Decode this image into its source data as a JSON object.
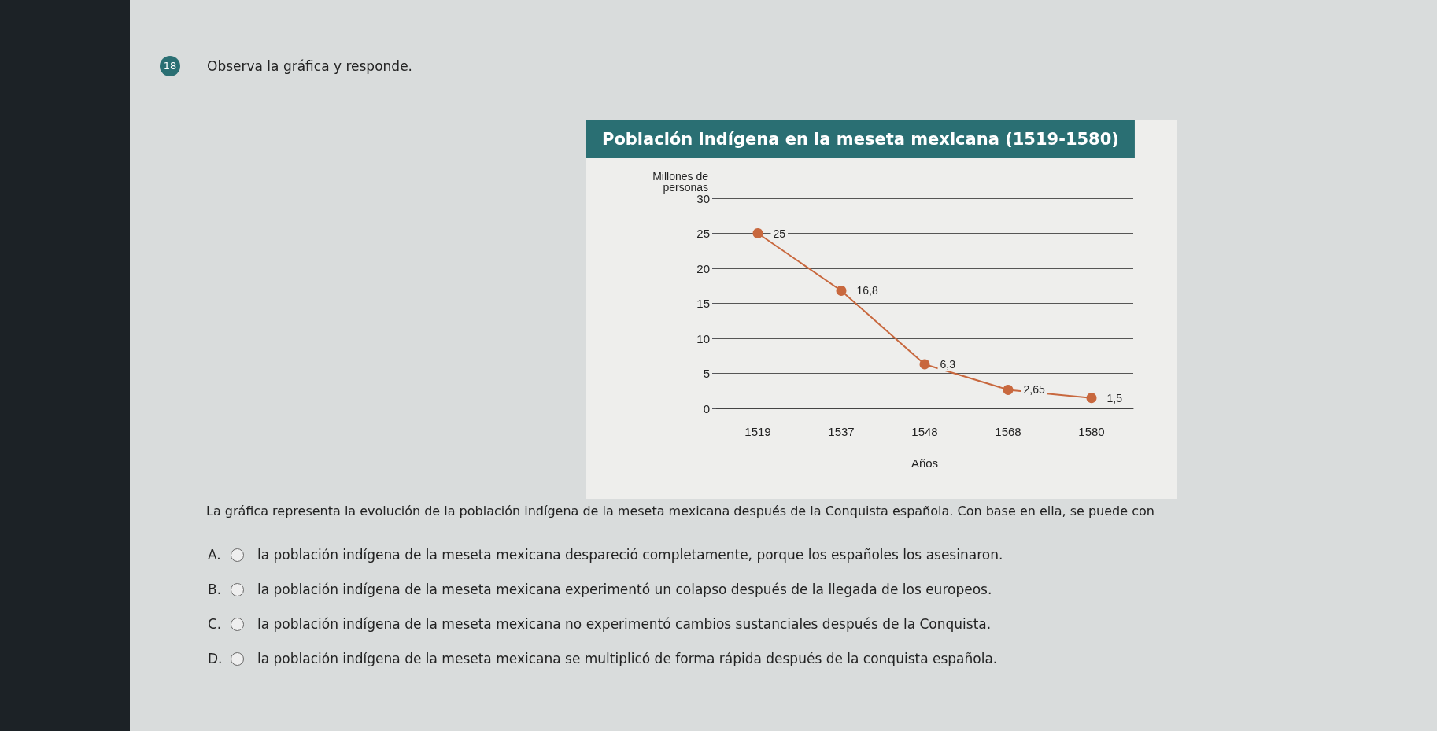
{
  "chart_data": {
    "type": "line",
    "title": "Población indígena en la meseta mexicana (1519-1580)",
    "xlabel": "Años",
    "ylabel": "Millones de\npersonas",
    "categories": [
      "1519",
      "1537",
      "1548",
      "1568",
      "1580"
    ],
    "series": [
      {
        "color": "#c8683e",
        "values": [
          25,
          16.8,
          6.3,
          2.65,
          1.5
        ],
        "value_labels": [
          "25",
          "16,8",
          "6,3",
          "2,65",
          "1,5"
        ]
      }
    ],
    "ylim": [
      0,
      30
    ],
    "yticks": [
      0,
      5,
      10,
      15,
      20,
      25,
      30
    ],
    "grid": "y",
    "marker": "circle",
    "line_style": "solid",
    "annotations": [
      "18",
      "Observa la gráfica y responde.",
      "La gráfica representa la evolución de la población indígena de la meseta mexicana después de la Conquista española. Con base en ella, se puede con",
      "A.",
      "la población indígena de la meseta mexicana despareció completamente, porque los españoles los asesinaron.",
      "B.",
      "la población indígena de la meseta mexicana experimentó un colapso después de la llegada de los europeos.",
      "C.",
      "la población indígena de la meseta mexicana no experimentó cambios sustanciales después de la Conquista.",
      "D.",
      "la población indígena de la meseta mexicana se multiplicó de forma rápida después de la conquista española."
    ]
  }
}
